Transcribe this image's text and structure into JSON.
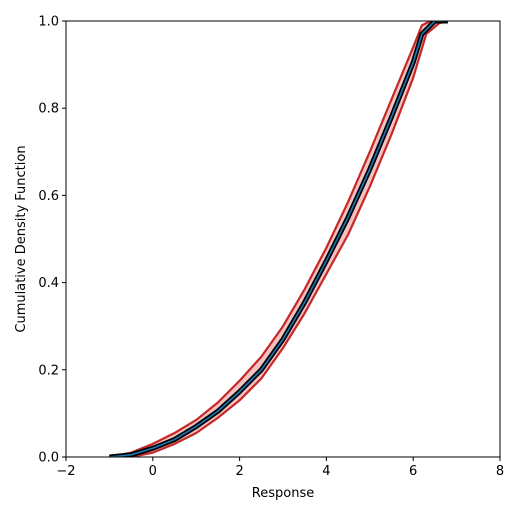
{
  "chart_data": {
    "type": "line",
    "title": "",
    "xlabel": "Response",
    "ylabel": "Cumulative Density Function",
    "xlim": [
      -2,
      8
    ],
    "ylim": [
      0.0,
      1.0
    ],
    "xticks": [
      -2,
      0,
      2,
      4,
      6,
      8
    ],
    "yticks": [
      0.0,
      0.2,
      0.4,
      0.6,
      0.8,
      1.0
    ],
    "xtick_labels": [
      "−2",
      "0",
      "2",
      "4",
      "6",
      "8"
    ],
    "ytick_labels": [
      "0.0",
      "0.2",
      "0.4",
      "0.6",
      "0.8",
      "1.0"
    ],
    "grid": false,
    "colors": {
      "band_fill": "#f3b7b7",
      "band_edge": "#c62828",
      "center_outline": "#000000",
      "center_line": "#1f77b4"
    },
    "series": [
      {
        "role": "lower-bound",
        "x": [
          -1.0,
          -0.5,
          0.0,
          0.5,
          1.0,
          1.5,
          2.0,
          2.5,
          3.0,
          3.5,
          4.0,
          4.5,
          5.0,
          5.5,
          6.0,
          6.3,
          6.6,
          6.8
        ],
        "y": [
          0.0,
          0.0,
          0.01,
          0.03,
          0.055,
          0.09,
          0.13,
          0.18,
          0.25,
          0.33,
          0.42,
          0.51,
          0.62,
          0.74,
          0.87,
          0.97,
          0.995,
          1.0
        ]
      },
      {
        "role": "mean",
        "x": [
          -1.0,
          -0.5,
          0.0,
          0.5,
          1.0,
          1.5,
          2.0,
          2.5,
          3.0,
          3.5,
          4.0,
          4.5,
          5.0,
          5.5,
          6.0,
          6.2,
          6.5,
          6.8
        ],
        "y": [
          0.0,
          0.005,
          0.02,
          0.04,
          0.07,
          0.105,
          0.15,
          0.2,
          0.27,
          0.355,
          0.45,
          0.55,
          0.66,
          0.78,
          0.905,
          0.97,
          1.0,
          1.0
        ]
      },
      {
        "role": "upper-bound",
        "x": [
          -1.0,
          -0.5,
          0.0,
          0.5,
          1.0,
          1.5,
          2.0,
          2.5,
          3.0,
          3.5,
          4.0,
          4.5,
          5.0,
          5.5,
          6.0,
          6.2,
          6.4,
          6.8
        ],
        "y": [
          0.0,
          0.01,
          0.03,
          0.055,
          0.085,
          0.125,
          0.175,
          0.23,
          0.3,
          0.385,
          0.48,
          0.585,
          0.7,
          0.82,
          0.94,
          0.99,
          1.0,
          1.0
        ]
      }
    ]
  }
}
